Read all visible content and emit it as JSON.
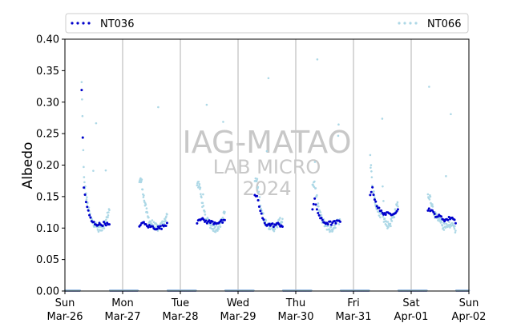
{
  "chart_data": {
    "type": "scatter",
    "ylabel": "Albedo",
    "ylim": [
      0,
      0.4
    ],
    "yticks": [
      "0.00",
      "0.05",
      "0.10",
      "0.15",
      "0.20",
      "0.25",
      "0.30",
      "0.35",
      "0.40"
    ],
    "xlim": [
      "2023-03-26",
      "2023-04-02"
    ],
    "xticks": [
      {
        "day": "Sun",
        "date": "Mar-26"
      },
      {
        "day": "Mon",
        "date": "Mar-27"
      },
      {
        "day": "Tue",
        "date": "Mar-28"
      },
      {
        "day": "Wed",
        "date": "Mar-29"
      },
      {
        "day": "Thu",
        "date": "Mar-30"
      },
      {
        "day": "Fri",
        "date": "Mar-31"
      },
      {
        "day": "Sat",
        "date": "Apr-01"
      },
      {
        "day": "Sun",
        "date": "Apr-02"
      }
    ],
    "grid": "x",
    "legend_position": "top",
    "watermark": [
      "IAG-MATAO",
      "LAB MICRO",
      "2024"
    ],
    "series": [
      {
        "name": "NT036",
        "color": "#0000cc",
        "days": [
          {
            "start": 0.32,
            "min": 0.104,
            "base": 0.108,
            "peak": 0.164,
            "end": 0.104
          },
          {
            "start": 0.1,
            "min": 0.099,
            "base": 0.102,
            "peak": 0.11,
            "end": 0.108
          },
          {
            "start": 0.11,
            "min": 0.108,
            "base": 0.11,
            "peak": 0.116,
            "end": 0.11
          },
          {
            "start": 0.15,
            "min": 0.104,
            "base": 0.106,
            "peak": 0.152,
            "end": 0.104
          },
          {
            "start": 0.13,
            "min": 0.107,
            "base": 0.109,
            "peak": 0.144,
            "end": 0.111
          },
          {
            "start": 0.155,
            "min": 0.12,
            "base": 0.125,
            "peak": 0.162,
            "end": 0.128
          },
          {
            "start": 0.13,
            "min": 0.11,
            "base": 0.118,
            "peak": 0.13,
            "end": 0.11
          }
        ]
      },
      {
        "name": "NT066",
        "color": "#add8e6",
        "days": [
          {
            "start": 0.33,
            "min": 0.094,
            "base": 0.108,
            "peak": 0.18,
            "end": 0.13
          },
          {
            "start": 0.175,
            "min": 0.096,
            "base": 0.108,
            "peak": 0.175,
            "end": 0.12
          },
          {
            "start": 0.17,
            "min": 0.094,
            "base": 0.108,
            "peak": 0.17,
            "end": 0.125
          },
          {
            "start": 0.175,
            "min": 0.095,
            "base": 0.108,
            "peak": 0.175,
            "end": 0.113
          },
          {
            "start": 0.17,
            "min": 0.092,
            "base": 0.108,
            "peak": 0.17,
            "end": 0.11
          },
          {
            "start": 0.22,
            "min": 0.095,
            "base": 0.12,
            "peak": 0.165,
            "end": 0.14
          },
          {
            "start": 0.15,
            "min": 0.095,
            "base": 0.11,
            "peak": 0.15,
            "end": 0.095
          }
        ]
      }
    ]
  }
}
